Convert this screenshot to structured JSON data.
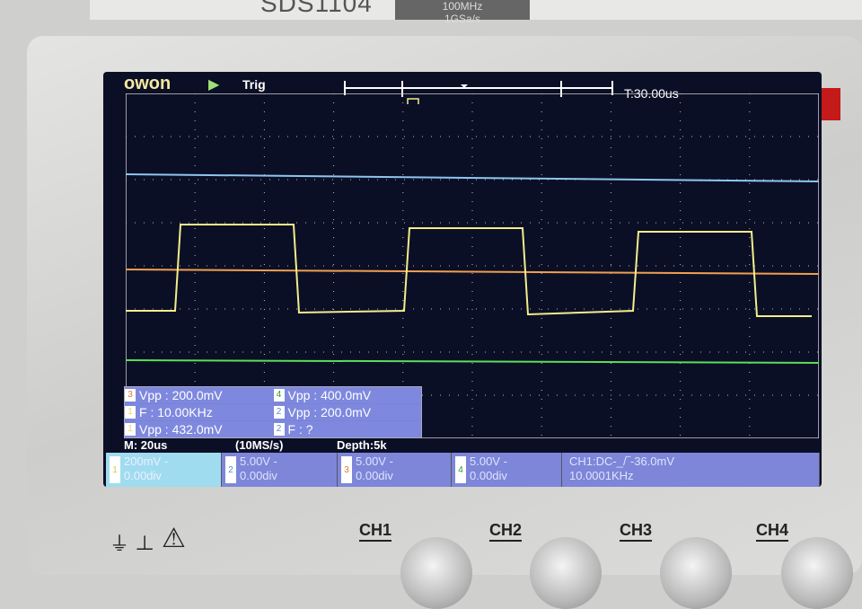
{
  "device": {
    "model": "SDS1104",
    "badge_line1": "100MHz",
    "badge_line2": "1GSa/s"
  },
  "screen": {
    "logo": "owon",
    "run_state_icon": "play-icon",
    "trigger_status": "Trig",
    "time_position": "T:30.00us",
    "traces": {
      "ch1_color": "#f2ee8a",
      "ch2_color": "#8ec6ee",
      "ch3_color": "#f0a050",
      "ch4_color": "#5adf5a"
    },
    "measurements": [
      {
        "ch": "3",
        "text": "Vpp : 200.0mV",
        "color": "#e07a30"
      },
      {
        "ch": "4",
        "text": "Vpp : 400.0mV",
        "color": "#2a9a2a"
      },
      {
        "ch": "1",
        "text": "F : 10.00KHz",
        "color": "#e8d860"
      },
      {
        "ch": "2",
        "text": "Vpp : 200.0mV",
        "color": "#5a8ad0"
      },
      {
        "ch": "1",
        "text": "Vpp : 432.0mV",
        "color": "#e8d860"
      },
      {
        "ch": "2",
        "text": "F :  ?",
        "color": "#5a8ad0"
      }
    ],
    "status": {
      "timebase": "M: 20us",
      "sample_rate": "(10MS/s)",
      "depth": "Depth:5k"
    },
    "channels": [
      {
        "n": "1",
        "scale": "200mV",
        "offset": "0.00div",
        "coupling": "-"
      },
      {
        "n": "2",
        "scale": "5.00V",
        "offset": "0.00div",
        "coupling": "-"
      },
      {
        "n": "3",
        "scale": "5.00V",
        "offset": "0.00div",
        "coupling": "-"
      },
      {
        "n": "4",
        "scale": "5.00V",
        "offset": "0.00div",
        "coupling": "-"
      }
    ],
    "trigger_info": {
      "line1": "CH1:DC-_/‾-36.0mV",
      "line2": "10.0001KHz"
    }
  },
  "panel": {
    "ch_labels": [
      "CH1",
      "CH2",
      "CH3",
      "CH4"
    ]
  }
}
